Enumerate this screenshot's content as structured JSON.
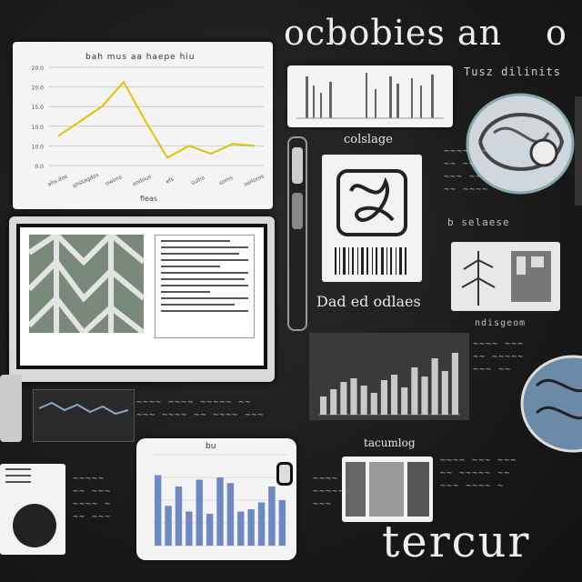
{
  "header": {
    "title": "ocbobies an",
    "title_tail": "o"
  },
  "footer": {
    "word": "tercur"
  },
  "labels": {
    "chart_top_title": "bah mus aa haepe hiu",
    "chart_top_xcaption": "fieas",
    "small_chart_caption": "Tusz dilinits",
    "pattern_caption": "colslage",
    "glyph_caption": "Dad ed odlaes",
    "bar_dark_caption": "tacumlog",
    "bar_small_title": "bu",
    "right_caption_1": "b selaese",
    "right_caption_2": "ndisgeom"
  },
  "chart_data": [
    {
      "type": "line",
      "title": "bah mus aa haepe hiu",
      "xlabel": "fieas",
      "ylabel": "",
      "y_ticks": [
        "20.0",
        "20.0",
        "15.0",
        "10.0",
        "10.0",
        "0.0"
      ],
      "x_ticks": [
        "ahs.dos",
        "ahstagdos",
        "owons",
        "oodous",
        "efs",
        "sulhs",
        "soms",
        "sorloros"
      ],
      "series": [
        {
          "values": [
            30,
            45,
            60,
            85,
            45,
            8,
            20,
            12,
            22,
            20
          ]
        }
      ],
      "ylim": [
        0,
        100
      ],
      "grid": true,
      "color": "#e0c400"
    },
    {
      "type": "bar",
      "values": [
        20,
        28,
        36,
        40,
        32,
        24,
        38,
        44,
        30,
        52,
        42,
        62,
        48,
        68
      ],
      "ylim": [
        0,
        80
      ],
      "color": "#c9c9c9"
    },
    {
      "type": "bar",
      "title": "bu",
      "values": [
        62,
        35,
        52,
        30,
        58,
        28,
        60,
        55,
        30,
        32,
        38,
        52,
        40
      ],
      "ylim": [
        0,
        80
      ],
      "color": "#6e88c4"
    }
  ]
}
